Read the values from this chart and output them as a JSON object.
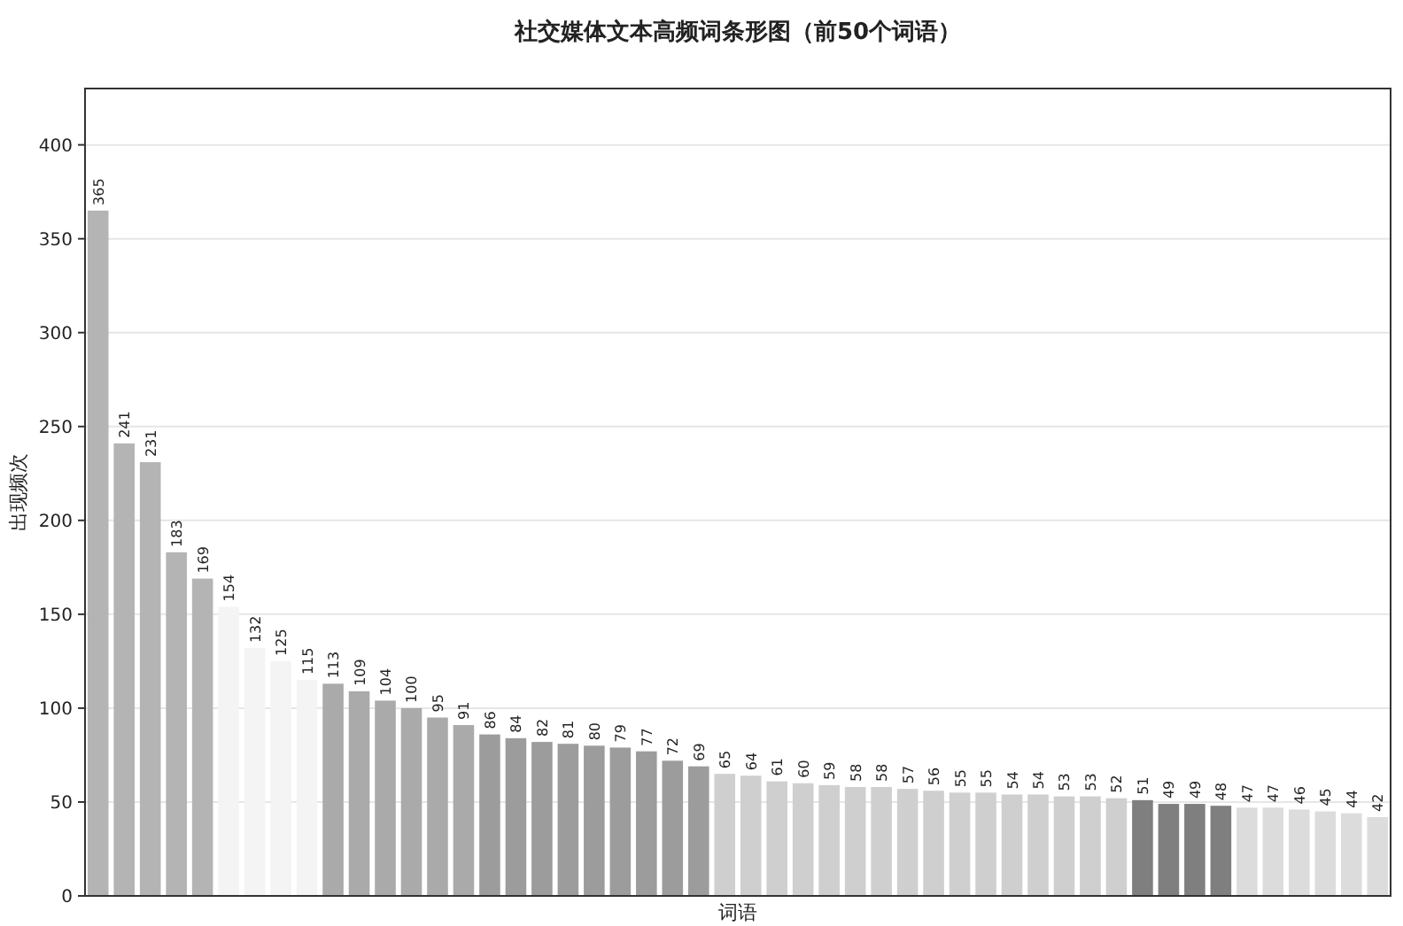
{
  "chart_data": {
    "type": "bar",
    "title": "社交媒体文本高频词条形图（前50个词语）",
    "xlabel": "词语",
    "ylabel": "出现频次",
    "categories": [
      null,
      null,
      null,
      null,
      null,
      null,
      null,
      null,
      null,
      null,
      null,
      null,
      null,
      null,
      null,
      null,
      null,
      null,
      null,
      null,
      null,
      null,
      null,
      null,
      null,
      null,
      null,
      null,
      null,
      null,
      null,
      null,
      null,
      null,
      null,
      null,
      null,
      null,
      null,
      null,
      null,
      null,
      null,
      null,
      null,
      null,
      null,
      null,
      null,
      null
    ],
    "values": [
      365,
      241,
      231,
      183,
      169,
      154,
      132,
      125,
      115,
      113,
      109,
      104,
      100,
      95,
      91,
      86,
      84,
      82,
      81,
      80,
      79,
      77,
      72,
      69,
      65,
      64,
      61,
      60,
      59,
      58,
      58,
      57,
      56,
      55,
      55,
      54,
      54,
      53,
      53,
      52,
      51,
      49,
      49,
      48,
      47,
      47,
      46,
      45,
      44,
      42
    ],
    "colors": [
      "#b4b4b4",
      "#b4b4b4",
      "#b4b4b4",
      "#b4b4b4",
      "#b4b4b4",
      "#f4f4f4",
      "#f4f4f4",
      "#f4f4f4",
      "#f4f4f4",
      "#aaaaaa",
      "#aaaaaa",
      "#aaaaaa",
      "#aaaaaa",
      "#aaaaaa",
      "#aaaaaa",
      "#9c9c9c",
      "#9c9c9c",
      "#9c9c9c",
      "#9c9c9c",
      "#9c9c9c",
      "#9c9c9c",
      "#9c9c9c",
      "#9c9c9c",
      "#9c9c9c",
      "#cfcfcf",
      "#cfcfcf",
      "#cfcfcf",
      "#cfcfcf",
      "#cfcfcf",
      "#cfcfcf",
      "#cfcfcf",
      "#cfcfcf",
      "#cfcfcf",
      "#cfcfcf",
      "#cfcfcf",
      "#cfcfcf",
      "#cfcfcf",
      "#cfcfcf",
      "#cfcfcf",
      "#cfcfcf",
      "#7f7f7f",
      "#7f7f7f",
      "#7f7f7f",
      "#7f7f7f",
      "#dcdcdc",
      "#dcdcdc",
      "#dcdcdc",
      "#dcdcdc",
      "#dcdcdc",
      "#dcdcdc"
    ],
    "ylim": [
      0,
      430
    ],
    "yticks": [
      0,
      50,
      100,
      150,
      200,
      250,
      300,
      350,
      400
    ],
    "grid": "y",
    "data_labels": true
  }
}
